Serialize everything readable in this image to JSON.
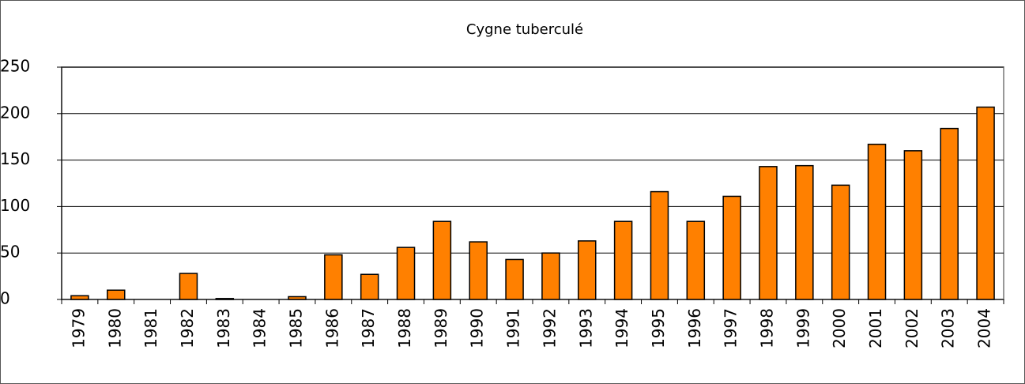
{
  "chart_data": {
    "type": "bar",
    "title": "Cygne tuberculé",
    "categories": [
      "1979",
      "1980",
      "1981",
      "1982",
      "1983",
      "1984",
      "1985",
      "1986",
      "1987",
      "1988",
      "1989",
      "1990",
      "1991",
      "1992",
      "1993",
      "1994",
      "1995",
      "1996",
      "1997",
      "1998",
      "1999",
      "2000",
      "2001",
      "2002",
      "2003",
      "2004"
    ],
    "values": [
      4,
      10,
      0,
      28,
      1,
      0,
      3,
      48,
      27,
      56,
      84,
      62,
      43,
      50,
      63,
      84,
      116,
      84,
      111,
      143,
      144,
      123,
      167,
      160,
      184,
      207
    ],
    "color": "#ff8000",
    "ylim": [
      0,
      250
    ],
    "yticks": [
      0,
      50,
      100,
      150,
      200,
      250
    ],
    "grid": true
  }
}
